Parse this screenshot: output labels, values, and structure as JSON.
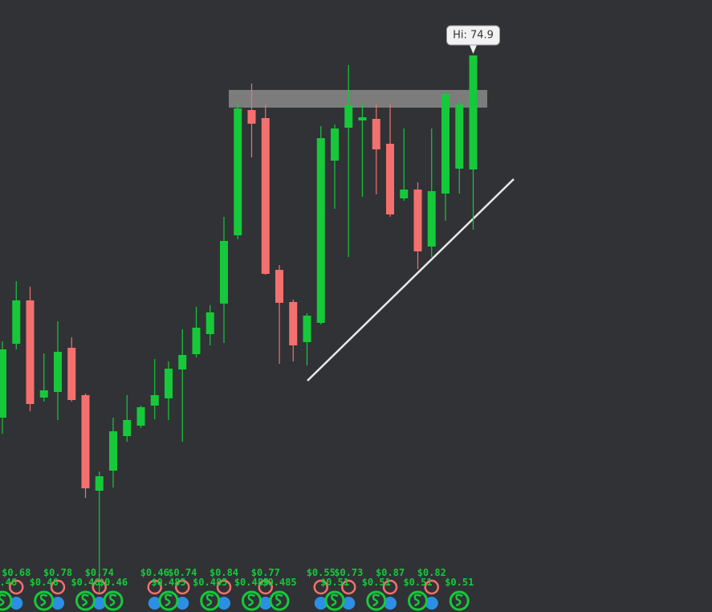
{
  "chart_data": {
    "type": "candlestick",
    "annotation": "Hi: 74.9",
    "up_color": "#16c93b",
    "down_color": "#f4706f",
    "ylim": [
      40.25,
      78.35
    ],
    "open": [
      52.35,
      56.95,
      59.65,
      53.6,
      53.95,
      56.7,
      53.75,
      47.8,
      49.05,
      51.2,
      51.85,
      53.1,
      53.55,
      55.35,
      56.3,
      57.55,
      59.45,
      63.7,
      71.5,
      71.0,
      61.55,
      59.55,
      57.05,
      58.25,
      68.35,
      70.4,
      70.85,
      70.95,
      69.4,
      66.0,
      66.55,
      63.0,
      66.3,
      67.85,
      67.8
    ],
    "high": [
      57.1,
      60.85,
      60.5,
      56.35,
      58.35,
      57.35,
      53.85,
      49.0,
      52.35,
      53.75,
      53.1,
      56.0,
      55.85,
      57.85,
      59.25,
      59.35,
      64.85,
      72.0,
      73.15,
      71.85,
      61.85,
      59.7,
      58.85,
      70.5,
      70.6,
      74.3,
      71.85,
      71.85,
      71.85,
      70.35,
      67.0,
      70.35,
      72.75,
      72.2,
      74.9
    ],
    "low": [
      51.35,
      56.6,
      52.75,
      53.35,
      52.2,
      53.35,
      47.35,
      41.35,
      48.0,
      50.85,
      51.7,
      52.25,
      52.2,
      50.85,
      56.1,
      56.85,
      57.0,
      63.45,
      68.55,
      61.25,
      55.7,
      55.85,
      55.6,
      58.15,
      65.35,
      62.35,
      66.1,
      66.25,
      64.85,
      65.85,
      61.6,
      62.35,
      64.6,
      66.3,
      64.05
    ],
    "close": [
      56.6,
      59.65,
      53.2,
      54.05,
      56.45,
      53.45,
      47.95,
      48.7,
      51.5,
      52.2,
      53.0,
      53.75,
      55.4,
      56.25,
      57.95,
      58.9,
      63.35,
      71.6,
      70.65,
      61.3,
      59.5,
      56.85,
      58.7,
      69.75,
      70.35,
      71.8,
      71.05,
      69.05,
      65.0,
      66.55,
      62.7,
      66.45,
      72.5,
      71.85,
      74.9
    ],
    "events": {
      "upper": [
        null,
        "$0.68",
        null,
        null,
        "$0.78",
        null,
        null,
        "$0.74",
        null,
        null,
        null,
        "$0.46",
        null,
        "$0.74",
        null,
        null,
        "$0.84",
        null,
        null,
        "$0.77",
        null,
        null,
        null,
        "$0.55",
        null,
        "$0.73",
        null,
        null,
        "$0.87",
        null,
        null,
        "$0.82",
        null,
        null,
        null
      ],
      "lower": [
        "$0.46",
        null,
        null,
        "$0.46",
        null,
        null,
        "$0.46",
        null,
        "$0.46",
        null,
        null,
        null,
        "$0.485",
        null,
        null,
        "$0.485",
        null,
        null,
        "$0.485",
        null,
        "$0.485",
        null,
        null,
        null,
        "$0.51",
        null,
        null,
        "$0.51",
        null,
        null,
        "$0.51",
        null,
        null,
        "$0.51",
        null
      ]
    }
  }
}
